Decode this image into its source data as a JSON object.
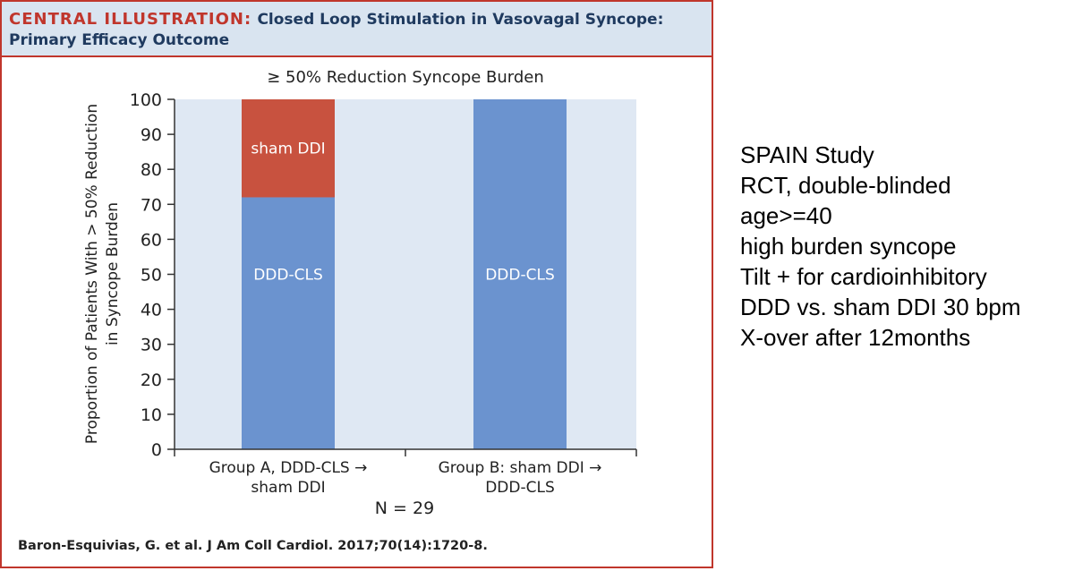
{
  "header": {
    "label": "CENTRAL ILLUSTRATION:",
    "title_line1": "Closed Loop Stimulation in Vasovagal Syncope:",
    "title_line2": "Primary Efficacy Outcome"
  },
  "citation": "Baron-Esquivias, G. et al. J Am Coll Cardiol. 2017;70(14):1720-8.",
  "notes": [
    "SPAIN Study",
    "RCT, double-blinded",
    "age>=40",
    "high burden syncope",
    "Tilt + for cardioinhibitory",
    "DDD vs. sham DDI 30 bpm",
    "X-over after 12months"
  ],
  "colors": {
    "accent_red": "#c0362c",
    "header_bg": "#d9e4f0",
    "plot_bg": "#dfe8f3",
    "bar_blue": "#6b93cf",
    "bar_red": "#c8523f"
  },
  "chart_data": {
    "type": "bar",
    "stacked": true,
    "title": "≥ 50% Reduction Syncope Burden",
    "ylabel_line1": "Proportion of Patients With > 50% Reduction",
    "ylabel_line2": "in Syncope Burden",
    "categories": [
      [
        "Group A, DDD-CLS →",
        "sham DDI"
      ],
      [
        "Group B: sham DDI →",
        "DDD-CLS"
      ]
    ],
    "series": [
      {
        "name": "DDD-CLS",
        "values": [
          72,
          100
        ],
        "color": "#6b93cf",
        "labels": [
          "DDD-CLS",
          "DDD-CLS"
        ]
      },
      {
        "name": "sham DDI",
        "values": [
          28,
          0
        ],
        "color": "#c8523f",
        "labels": [
          "sham DDI",
          ""
        ]
      }
    ],
    "ylim": [
      0,
      100
    ],
    "yticks": [
      0,
      10,
      20,
      30,
      40,
      50,
      60,
      70,
      80,
      90,
      100
    ],
    "n_label": "N = 29",
    "grid": false
  }
}
